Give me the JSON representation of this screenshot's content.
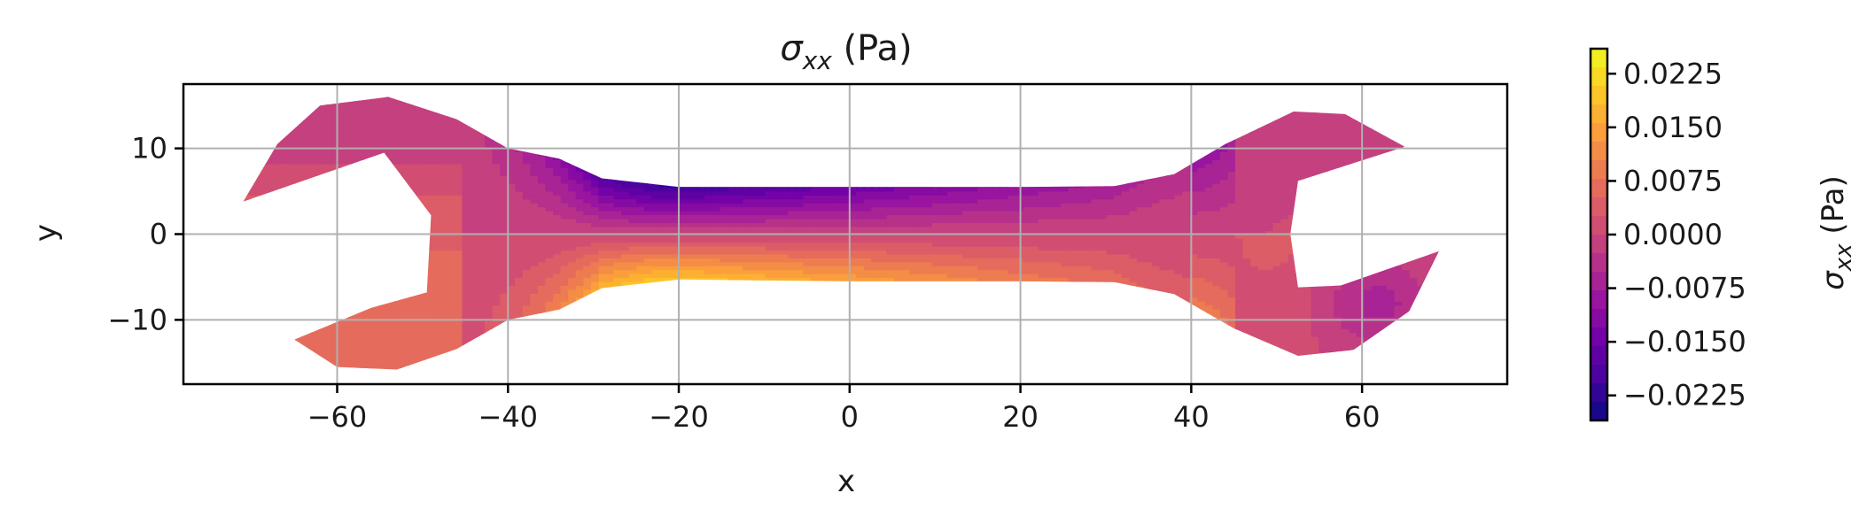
{
  "chart_data": {
    "type": "heatmap",
    "title": "σxx (Pa)",
    "title_symbol": "σ",
    "title_subscript": "xx",
    "title_unit": " (Pa)",
    "xlabel": "x",
    "ylabel": "y",
    "xlim": [
      -78,
      77
    ],
    "ylim": [
      -17.5,
      17.5
    ],
    "xticks": [
      -60,
      -40,
      -20,
      0,
      20,
      40,
      60
    ],
    "xtick_labels": [
      "−60",
      "−40",
      "−20",
      "0",
      "20",
      "40",
      "60"
    ],
    "yticks": [
      -10,
      0,
      10
    ],
    "ytick_labels": [
      "−10",
      "0",
      "10"
    ],
    "grid": true,
    "colormap": "plasma",
    "colormap_stops": [
      "#0d0887",
      "#46039f",
      "#7201a8",
      "#9c179e",
      "#bd3786",
      "#d8576b",
      "#ed7953",
      "#fb9f3a",
      "#fdca26",
      "#f0f921"
    ],
    "colorbar": {
      "label_symbol": "σ",
      "label_subscript": "xx",
      "label_unit": " (Pa)",
      "vmin": -0.026,
      "vmax": 0.026,
      "ticks": [
        -0.0225,
        -0.015,
        -0.0075,
        0.0,
        0.0075,
        0.015,
        0.0225
      ],
      "tick_labels": [
        "−0.0225",
        "−0.0150",
        "−0.0075",
        "0.0000",
        "0.0075",
        "0.0150",
        "0.0225"
      ]
    },
    "outline": [
      [
        -71,
        3.8
      ],
      [
        -67,
        10.5
      ],
      [
        -62,
        15
      ],
      [
        -54,
        16
      ],
      [
        -46,
        13.4
      ],
      [
        -40,
        10
      ],
      [
        -34,
        8.8
      ],
      [
        -29,
        6.5
      ],
      [
        -20,
        5.5
      ],
      [
        0,
        5.5
      ],
      [
        20,
        5.5
      ],
      [
        31,
        5.6
      ],
      [
        38,
        7
      ],
      [
        44,
        10.5
      ],
      [
        52,
        14.3
      ],
      [
        58,
        14
      ],
      [
        65,
        10.2
      ],
      [
        52.5,
        6.2
      ],
      [
        51.6,
        0
      ],
      [
        52.5,
        -6.2
      ],
      [
        57.5,
        -6
      ],
      [
        69,
        -2
      ],
      [
        65.5,
        -9
      ],
      [
        59,
        -13.5
      ],
      [
        52.5,
        -14.2
      ],
      [
        45,
        -11
      ],
      [
        38,
        -7
      ],
      [
        31,
        -5.6
      ],
      [
        20,
        -5.5
      ],
      [
        0,
        -5.5
      ],
      [
        -20,
        -5.3
      ],
      [
        -29,
        -6.3
      ],
      [
        -34,
        -8.8
      ],
      [
        -40,
        -10
      ],
      [
        -46,
        -13.4
      ],
      [
        -53,
        -15.8
      ],
      [
        -60,
        -15.5
      ],
      [
        -65,
        -12.3
      ],
      [
        -56,
        -8.6
      ],
      [
        -49.5,
        -6.8
      ],
      [
        -49,
        2.2
      ],
      [
        -54.5,
        9.5
      ]
    ],
    "stress_model": {
      "shaft_amplitude": 0.0205,
      "peak_x": -22,
      "note_free_of_geometry": true
    }
  }
}
